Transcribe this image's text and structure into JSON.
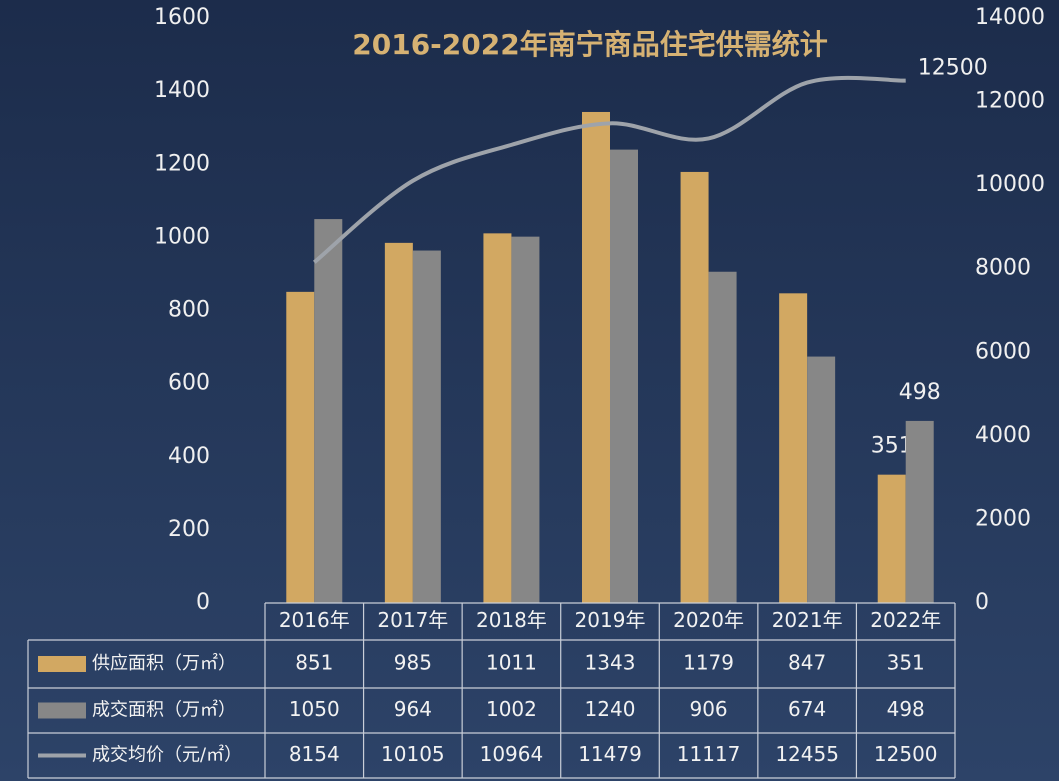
{
  "chart_data": {
    "type": "bar",
    "title": "2016-2022年南宁商品住宅供需统计",
    "categories": [
      "2016年",
      "2017年",
      "2018年",
      "2019年",
      "2020年",
      "2021年",
      "2022年"
    ],
    "series": [
      {
        "name": "供应面积（万㎡）",
        "color": "#d2a862",
        "type": "bar",
        "values": [
          851,
          985,
          1011,
          1343,
          1179,
          847,
          351
        ]
      },
      {
        "name": "成交面积（万㎡）",
        "color": "#878787",
        "type": "bar",
        "values": [
          1050,
          964,
          1002,
          1240,
          906,
          674,
          498
        ]
      },
      {
        "name": "成交均价（元/㎡）",
        "color": "#9ea3aa",
        "type": "line",
        "axis": "y2",
        "values": [
          8154,
          10105,
          10964,
          11479,
          11117,
          12455,
          12500
        ]
      }
    ],
    "ylim": [
      0,
      1600
    ],
    "yticks": [
      0,
      200,
      400,
      600,
      800,
      1000,
      1200,
      1400,
      1600
    ],
    "y2lim": [
      0,
      14000
    ],
    "y2ticks": [
      0,
      2000,
      4000,
      6000,
      8000,
      10000,
      12000,
      14000
    ]
  }
}
